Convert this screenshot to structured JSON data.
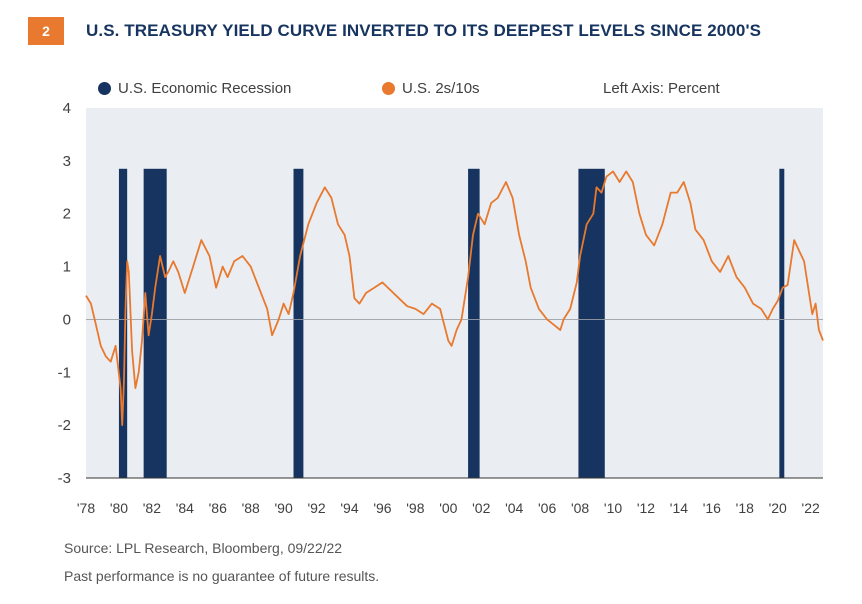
{
  "header": {
    "badge": "2",
    "title": "U.S. TREASURY YIELD CURVE INVERTED TO ITS DEEPEST LEVELS SINCE 2000'S"
  },
  "legend": {
    "recession_label": "U.S. Economic Recession",
    "series_label": "U.S. 2s/10s",
    "axis_note": "Left Axis: Percent"
  },
  "footer": {
    "source": "Source:  LPL Research, Bloomberg,  09/22/22",
    "disclaimer": "Past performance is no guarantee of future results."
  },
  "colors": {
    "recession": "#16345f",
    "series": "#e8792e",
    "plot_bg": "#eaeef2",
    "badge": "#e8792e"
  },
  "chart_data": {
    "type": "line",
    "title": "U.S. TREASURY YIELD CURVE INVERTED TO ITS DEEPEST LEVELS SINCE 2000'S",
    "ylabel": "Left Axis: Percent",
    "xlim": [
      1978,
      2022.75
    ],
    "ylim": [
      -3,
      4
    ],
    "yticks": [
      -3,
      -2,
      -1,
      0,
      1,
      2,
      3,
      4
    ],
    "xticks": [
      1978,
      1980,
      1982,
      1984,
      1986,
      1988,
      1990,
      1992,
      1994,
      1996,
      1998,
      2000,
      2002,
      2004,
      2006,
      2008,
      2010,
      2012,
      2014,
      2016,
      2018,
      2020,
      2022
    ],
    "xtick_labels": [
      "'78",
      "'80",
      "'82",
      "'84",
      "'86",
      "'88",
      "'90",
      "'92",
      "'94",
      "'96",
      "'98",
      "'00",
      "'02",
      "'04",
      "'06",
      "'08",
      "'10",
      "'12",
      "'14",
      "'16",
      "'18",
      "'20",
      "'22"
    ],
    "recessions": [
      {
        "start": 1980.0,
        "end": 1980.5,
        "label": "U.S. Economic Recession"
      },
      {
        "start": 1981.5,
        "end": 1982.9
      },
      {
        "start": 1990.6,
        "end": 1991.2
      },
      {
        "start": 2001.2,
        "end": 2001.9
      },
      {
        "start": 2007.9,
        "end": 2009.5
      },
      {
        "start": 2020.1,
        "end": 2020.4
      }
    ],
    "recession_top": 2.85,
    "grid": false,
    "zero_line": true,
    "legend_position": "top",
    "series": [
      {
        "name": "U.S. 2s/10s",
        "x": [
          1978.0,
          1978.3,
          1978.6,
          1978.9,
          1979.2,
          1979.5,
          1979.8,
          1979.95,
          1980.1,
          1980.2,
          1980.3,
          1980.4,
          1980.5,
          1980.6,
          1980.8,
          1981.0,
          1981.2,
          1981.4,
          1981.6,
          1981.8,
          1982.0,
          1982.2,
          1982.5,
          1982.8,
          1983.0,
          1983.3,
          1983.6,
          1984.0,
          1984.5,
          1985.0,
          1985.5,
          1985.9,
          1986.3,
          1986.6,
          1987.0,
          1987.5,
          1988.0,
          1988.5,
          1989.0,
          1989.3,
          1989.7,
          1990.0,
          1990.3,
          1990.6,
          1991.0,
          1991.5,
          1992.0,
          1992.5,
          1992.9,
          1993.3,
          1993.7,
          1994.0,
          1994.3,
          1994.6,
          1995.0,
          1995.5,
          1996.0,
          1996.5,
          1997.0,
          1997.5,
          1998.0,
          1998.5,
          1999.0,
          1999.5,
          2000.0,
          2000.2,
          2000.5,
          2000.8,
          2001.0,
          2001.2,
          2001.5,
          2001.8,
          2002.2,
          2002.6,
          2003.0,
          2003.5,
          2003.9,
          2004.3,
          2004.7,
          2005.0,
          2005.5,
          2006.0,
          2006.4,
          2006.8,
          2007.0,
          2007.4,
          2007.8,
          2008.0,
          2008.4,
          2008.8,
          2009.0,
          2009.3,
          2009.6,
          2010.0,
          2010.4,
          2010.8,
          2011.2,
          2011.6,
          2012.0,
          2012.5,
          2013.0,
          2013.5,
          2013.9,
          2014.3,
          2014.7,
          2015.0,
          2015.5,
          2016.0,
          2016.5,
          2017.0,
          2017.5,
          2018.0,
          2018.5,
          2019.0,
          2019.4,
          2019.7,
          2020.0,
          2020.3,
          2020.6,
          2021.0,
          2021.3,
          2021.6,
          2021.9,
          2022.1,
          2022.3,
          2022.5,
          2022.75
        ],
        "values": [
          0.45,
          0.3,
          -0.1,
          -0.5,
          -0.7,
          -0.8,
          -0.5,
          -0.9,
          -1.3,
          -2.0,
          -1.2,
          0.2,
          1.1,
          0.9,
          -0.6,
          -1.3,
          -1.0,
          -0.4,
          0.5,
          -0.3,
          0.1,
          0.6,
          1.2,
          0.8,
          0.9,
          1.1,
          0.9,
          0.5,
          1.0,
          1.5,
          1.2,
          0.6,
          1.0,
          0.8,
          1.1,
          1.2,
          1.0,
          0.6,
          0.2,
          -0.3,
          0.0,
          0.3,
          0.1,
          0.5,
          1.2,
          1.8,
          2.2,
          2.5,
          2.3,
          1.8,
          1.6,
          1.2,
          0.4,
          0.3,
          0.5,
          0.6,
          0.7,
          0.55,
          0.4,
          0.25,
          0.2,
          0.1,
          0.3,
          0.2,
          -0.4,
          -0.5,
          -0.2,
          0.0,
          0.4,
          0.8,
          1.6,
          2.0,
          1.8,
          2.2,
          2.3,
          2.6,
          2.3,
          1.6,
          1.1,
          0.6,
          0.2,
          0.0,
          -0.1,
          -0.2,
          0.0,
          0.2,
          0.7,
          1.2,
          1.8,
          2.0,
          2.5,
          2.4,
          2.7,
          2.8,
          2.6,
          2.8,
          2.6,
          2.0,
          1.6,
          1.4,
          1.8,
          2.4,
          2.4,
          2.6,
          2.2,
          1.7,
          1.5,
          1.1,
          0.9,
          1.2,
          0.8,
          0.6,
          0.3,
          0.2,
          0.0,
          0.2,
          0.35,
          0.6,
          0.65,
          1.5,
          1.3,
          1.1,
          0.5,
          0.1,
          0.3,
          -0.2,
          -0.4
        ]
      }
    ]
  }
}
